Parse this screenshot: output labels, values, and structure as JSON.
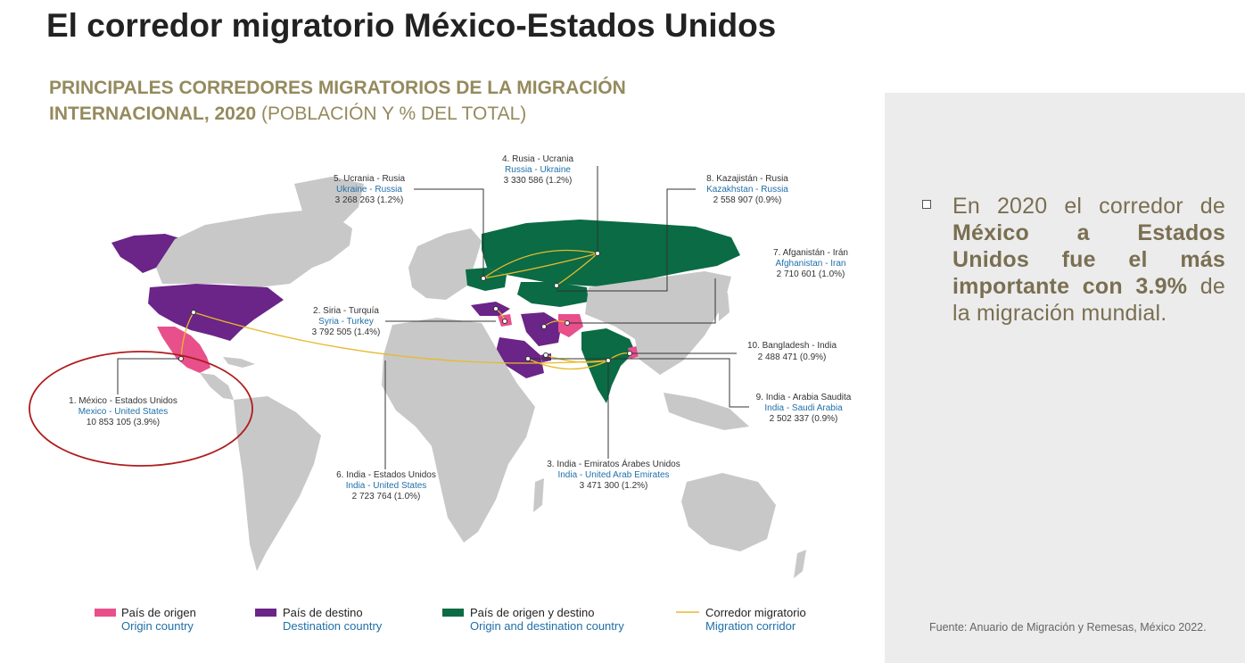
{
  "slide_title": "El corredor migratorio México-Estados Unidos",
  "map_title": {
    "bold": "PRINCIPALES CORREDORES MIGRATORIOS DE LA MIGRACIÓN INTERNACIONAL, 2020",
    "normal": " (POBLACIÓN Y % DEL TOTAL)"
  },
  "bullet": {
    "normal_start": "En 2020 el corredor de ",
    "bold": "México a Estados Unidos fue el más importante con 3.9%",
    "normal_end": " de la migración mundial."
  },
  "source": "Fuente: Anuario de Migración y Remesas, México 2022.",
  "colors": {
    "origin": "#e8508c",
    "destination": "#6b2487",
    "origin_destination": "#0a6b45",
    "corridor": "#e7b92b",
    "land": "#c8c8c8",
    "highlight_ellipse": "#b01c1c"
  },
  "corridors": [
    {
      "es": "1. México - Estados Unidos",
      "en": "Mexico - United States",
      "value": "10 853 105 (3.9%)"
    },
    {
      "es": "2. Siria - Turquía",
      "en": "Syria - Turkey",
      "value": "3 792 505 (1.4%)"
    },
    {
      "es": "3. India - Emiratos Árabes Unidos",
      "en": "India - United Arab Emirates",
      "value": "3 471 300 (1.2%)"
    },
    {
      "es": "4. Rusia - Ucrania",
      "en": "Russia - Ukraine",
      "value": "3 330 586 (1.2%)"
    },
    {
      "es": "5. Ucrania - Rusia",
      "en": "Ukraine - Russia",
      "value": "3 268 263 (1.2%)"
    },
    {
      "es": "6. India - Estados Unidos",
      "en": "India - United States",
      "value": "2 723 764 (1.0%)"
    },
    {
      "es": "7. Afganistán - Irán",
      "en": "Afghanistan - Iran",
      "value": "2 710 601 (1.0%)"
    },
    {
      "es": "8. Kazajistán - Rusia",
      "en": "Kazakhstan - Russia",
      "value": "2 558 907 (0.9%)"
    },
    {
      "es": "9. India - Arabia Saudita",
      "en": "India - Saudi Arabia",
      "value": "2 502 337 (0.9%)"
    },
    {
      "es": "10. Bangladesh - India",
      "en": "",
      "value": "2 488 471 (0.9%)"
    }
  ],
  "legend": [
    {
      "es": "País de origen",
      "en": "Origin country",
      "color_key": "origin"
    },
    {
      "es": "País de destino",
      "en": "Destination country",
      "color_key": "destination"
    },
    {
      "es": "País de origen y destino",
      "en": "Origin and destination country",
      "color_key": "origin_destination"
    },
    {
      "es": "Corredor migratorio",
      "en": "Migration corridor",
      "color_key": "corridor"
    }
  ]
}
